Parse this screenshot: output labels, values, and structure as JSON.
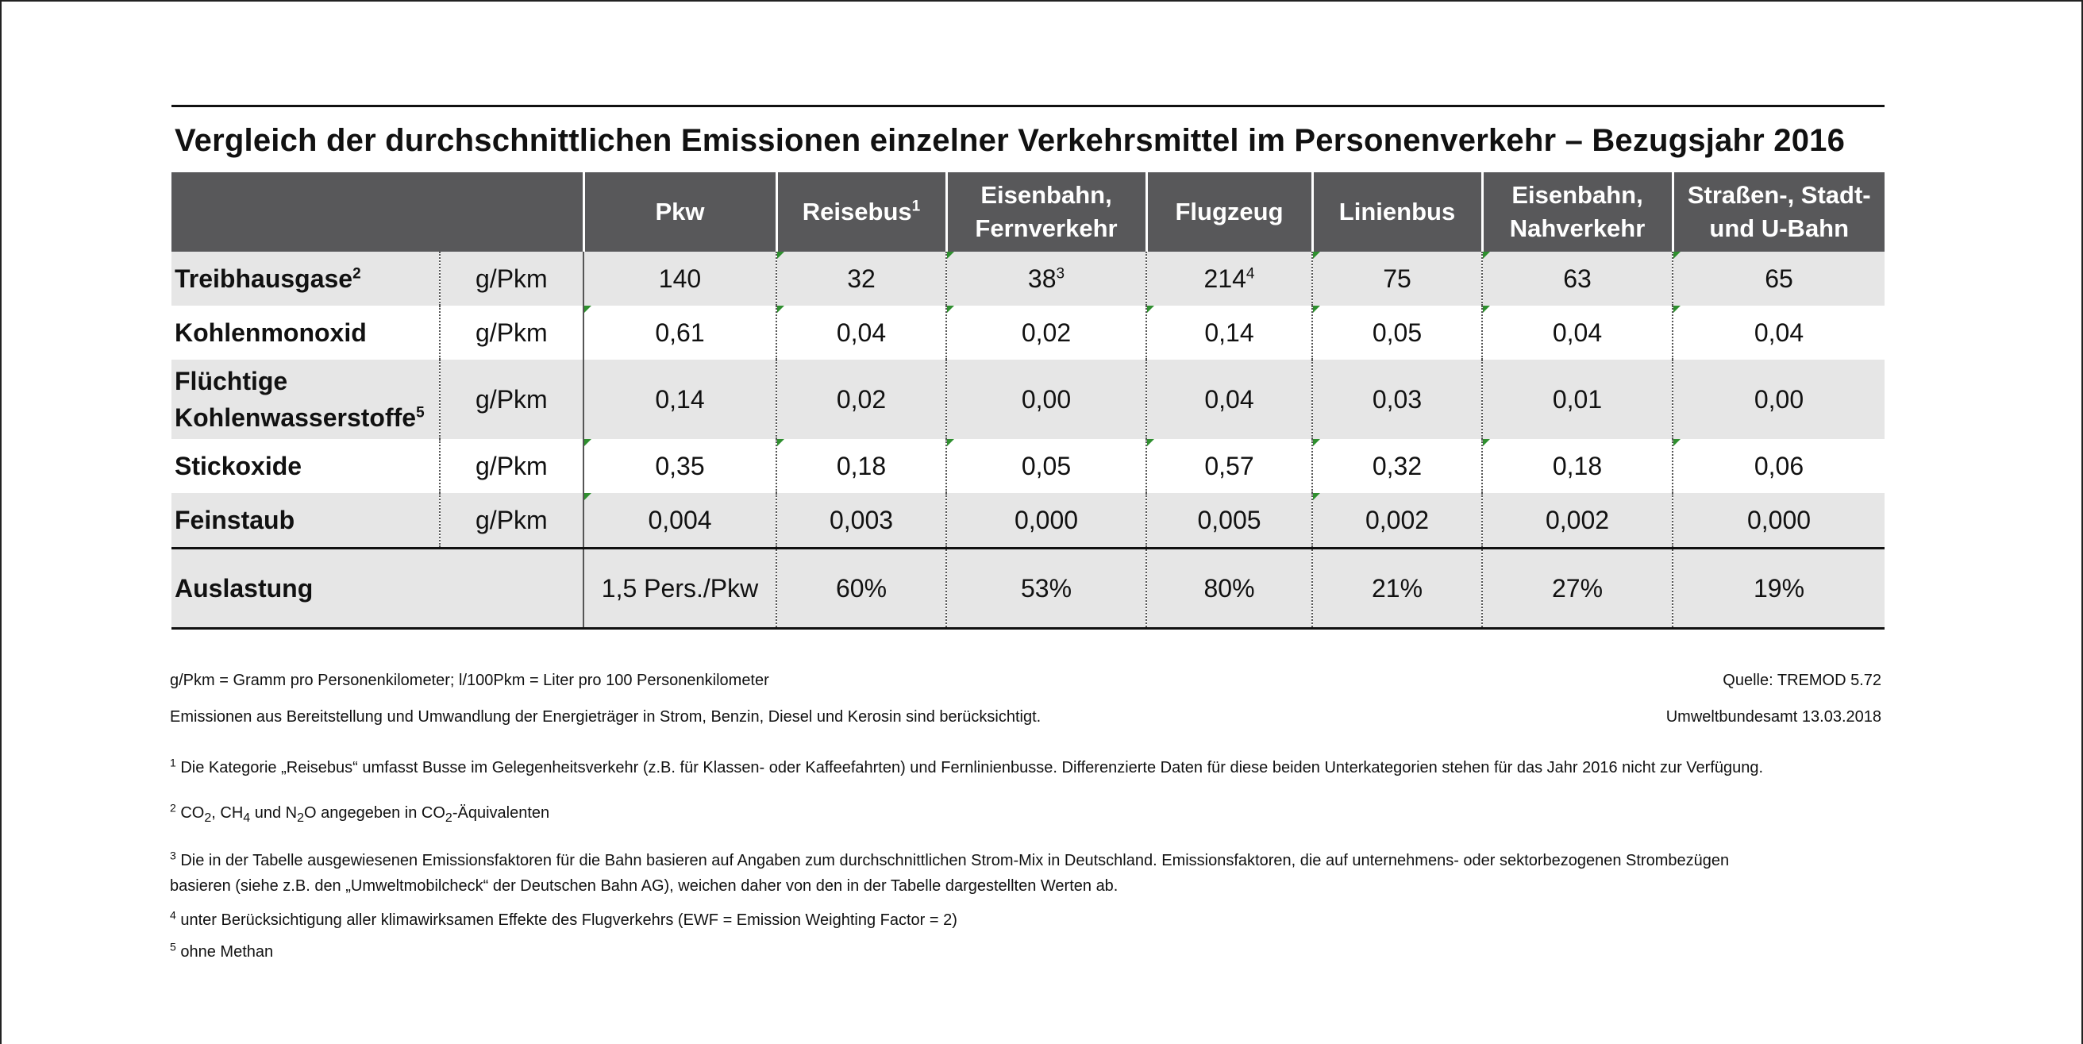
{
  "title": "Vergleich der durchschnittlichen Emissionen einzelner Verkehrsmittel im Personenverkehr – Bezugsjahr 2016",
  "columns": [
    {
      "label": "Pkw",
      "sup": ""
    },
    {
      "label": "Reisebus",
      "sup": "1"
    },
    {
      "label": "Eisenbahn, Fernverkehr",
      "sup": ""
    },
    {
      "label": "Flugzeug",
      "sup": ""
    },
    {
      "label": "Linienbus",
      "sup": ""
    },
    {
      "label": "Eisenbahn, Nahverkehr",
      "sup": ""
    },
    {
      "label": "Straßen-, Stadt- und U-Bahn",
      "sup": ""
    }
  ],
  "col_lines": [
    [
      "Pkw"
    ],
    [
      "Reisebus"
    ],
    [
      "Eisenbahn,",
      "Fernverkehr"
    ],
    [
      "Flugzeug"
    ],
    [
      "Linienbus"
    ],
    [
      "Eisenbahn,",
      "Nahverkehr"
    ],
    [
      "Straßen-, Stadt-",
      "und U-Bahn"
    ]
  ],
  "rows": [
    {
      "param": "Treibhausgase",
      "param_sup": "2",
      "unit": "g/Pkm",
      "values": [
        "140",
        "32",
        "38",
        "214",
        "75",
        "63",
        "65"
      ],
      "value_sups": [
        "",
        "",
        "3",
        "4",
        "",
        "",
        ""
      ]
    },
    {
      "param": "Kohlenmonoxid",
      "param_sup": "",
      "unit": "g/Pkm",
      "values": [
        "0,61",
        "0,04",
        "0,02",
        "0,14",
        "0,05",
        "0,04",
        "0,04"
      ]
    },
    {
      "param": "Flüchtige Kohlenwasserstoffe",
      "param_line1": "Flüchtige",
      "param_line2": "Kohlenwasserstoffe",
      "param_sup": "5",
      "unit": "g/Pkm",
      "values": [
        "0,14",
        "0,02",
        "0,00",
        "0,04",
        "0,03",
        "0,01",
        "0,00"
      ]
    },
    {
      "param": "Stickoxide",
      "param_sup": "",
      "unit": "g/Pkm",
      "values": [
        "0,35",
        "0,18",
        "0,05",
        "0,57",
        "0,32",
        "0,18",
        "0,06"
      ]
    },
    {
      "param": "Feinstaub",
      "param_sup": "",
      "unit": "g/Pkm",
      "values": [
        "0,004",
        "0,003",
        "0,000",
        "0,005",
        "0,002",
        "0,002",
        "0,000"
      ]
    }
  ],
  "auslastung": {
    "label": "Auslastung",
    "values": [
      "1,5 Pers./Pkw",
      "60%",
      "53%",
      "80%",
      "21%",
      "27%",
      "19%"
    ]
  },
  "notes": {
    "units": "g/Pkm = Gramm pro Personenkilometer; l/100Pkm = Liter pro 100 Personenkilometer",
    "source": "Quelle: TREMOD 5.72",
    "scope": "Emissionen aus Bereitstellung und Umwandlung der Energieträger in Strom, Benzin, Diesel und Kerosin sind berücksichtigt.",
    "date": "Umweltbundesamt 13.03.2018",
    "fn1_num": "1",
    "fn1": "Die Kategorie „Reisebus“ umfasst Busse im Gelegenheitsverkehr (z.B. für Klassen- oder  Kaffeefahrten) und Fernlinienbusse. Differenzierte Daten für diese beiden Unterkategorien stehen für das Jahr 2016 nicht zur Verfügung.",
    "fn2_num": "2",
    "fn2_a": "CO",
    "fn2_b": ", CH",
    "fn2_c": " und N",
    "fn2_d": "O angegeben in CO",
    "fn2_e": "-Äquivalenten",
    "sub2": "2",
    "sub4": "4",
    "fn3_num": "3",
    "fn3_line1": "Die in der Tabelle ausgewiesenen Emissionsfaktoren für die Bahn basieren auf Angaben zum durchschnittlichen Strom-Mix in Deutschland. Emissionsfaktoren, die auf unternehmens- oder sektorbezogenen Strombezügen",
    "fn3_line2": "basieren (siehe z.B. den „Umweltmobilcheck“ der Deutschen Bahn AG), weichen daher von den in der Tabelle dargestellten Werten ab.",
    "fn4_num": "4",
    "fn4": "unter Berücksichtigung aller klimawirksamen Effekte des Flugverkehrs (EWF = Emission Weighting Factor = 2)",
    "fn5_num": "5",
    "fn5": "ohne Methan"
  }
}
